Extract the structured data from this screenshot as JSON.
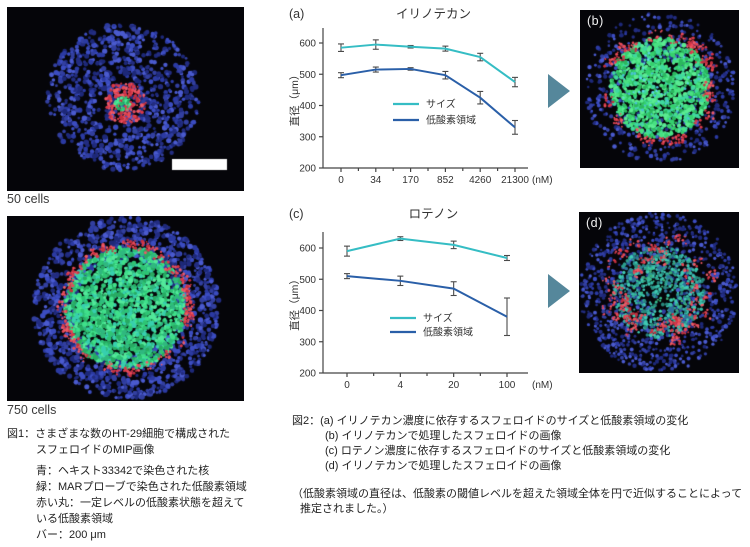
{
  "left_panel": {
    "top_image_label": "50 cells",
    "bottom_image_label": "750 cells"
  },
  "right_panel": {
    "top_image_label": "(b)",
    "bottom_image_label": "(d)"
  },
  "arrow_color": "#55879b",
  "colors": {
    "size_series": "#35bdc4",
    "hypoxia_series": "#2a5fa8",
    "error_bar": "#4a4a4a",
    "nuclei_blue": "#2c3ba4",
    "hypoxia_green": "#3fd476",
    "threshold_red": "#e04050",
    "image_background": "#050509"
  },
  "chart_data": [
    {
      "type": "line",
      "panel_label": "(a)",
      "title": "イリノテカン",
      "categories": [
        "0",
        "34",
        "170",
        "852",
        "4260",
        "21300"
      ],
      "x_unit": "(nM)",
      "xlabel": "",
      "ylabel": "直径（μm）",
      "ylim": [
        200,
        650
      ],
      "yticks": [
        200,
        300,
        400,
        500,
        600
      ],
      "grid": false,
      "legend_position": "inside",
      "series": [
        {
          "name": "サイズ",
          "color": "#35bdc4",
          "values": [
            585,
            595,
            588,
            582,
            555,
            475
          ],
          "errors": [
            12,
            15,
            4,
            8,
            12,
            15
          ]
        },
        {
          "name": "低酸素領域",
          "color": "#2a5fa8",
          "values": [
            497,
            515,
            517,
            497,
            425,
            330
          ],
          "errors": [
            8,
            8,
            4,
            12,
            20,
            22
          ]
        }
      ]
    },
    {
      "type": "line",
      "panel_label": "(c)",
      "title": "ロテノン",
      "categories": [
        "0",
        "4",
        "20",
        "100"
      ],
      "x_unit": "(nM)",
      "xlabel": "",
      "ylabel": "直径（μm）",
      "ylim": [
        200,
        650
      ],
      "yticks": [
        200,
        300,
        400,
        500,
        600
      ],
      "grid": false,
      "legend_position": "inside",
      "series": [
        {
          "name": "サイズ",
          "color": "#35bdc4",
          "values": [
            590,
            630,
            610,
            568
          ],
          "errors": [
            16,
            6,
            12,
            8
          ]
        },
        {
          "name": "低酸素領域",
          "color": "#2a5fa8",
          "values": [
            510,
            495,
            470,
            380
          ],
          "errors": [
            8,
            15,
            22,
            60
          ]
        }
      ]
    }
  ],
  "captions": {
    "fig1": {
      "line1": "図1：さまざまな数のHT-29細胞で構成された",
      "line2": "スフェロイドのMIP画像",
      "body": [
        "青：ヘキスト33342で染色された核",
        "緑：MARプローブで染色された低酸素領域",
        "赤い丸：一定レベルの低酸素状態を超えて",
        "いる低酸素領域",
        "バー：200 μm"
      ]
    },
    "fig2": {
      "line1": "図2：(a) イリノテカン濃度に依存するスフェロイドのサイズと低酸素領域の変化",
      "body": [
        "(b) イリノテカンで処理したスフェロイドの画像",
        "(c) ロテノン濃度に依存するスフェロイドのサイズと低酸素領域の変化",
        "(d) イリノテカンで処理したスフェロイドの画像"
      ],
      "note": [
        "（低酸素領域の直径は、低酸素の閾値レベルを超えた領域全体を円で近似することによって",
        "推定されました。）"
      ]
    }
  }
}
